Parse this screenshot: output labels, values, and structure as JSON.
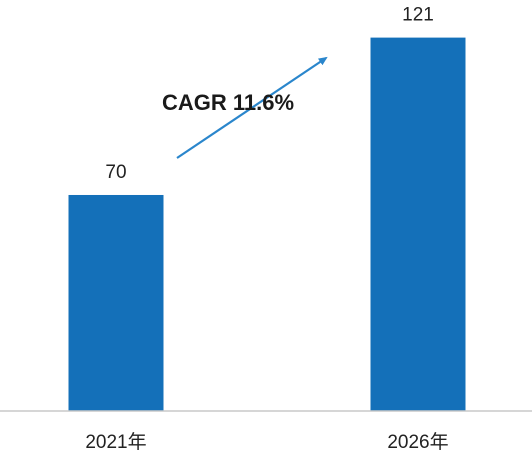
{
  "chart_data": {
    "type": "bar",
    "categories": [
      "2021年",
      "2026年"
    ],
    "values": [
      70,
      121
    ],
    "data_labels": [
      "70",
      "121"
    ],
    "annotation": "CAGR 11.6%",
    "ylim": [
      0,
      128
    ],
    "grid": false,
    "legend": "none",
    "bar_color": "#1470b9",
    "arrow_color": "#2a86cc",
    "axis_color": "#c8c8c8"
  }
}
